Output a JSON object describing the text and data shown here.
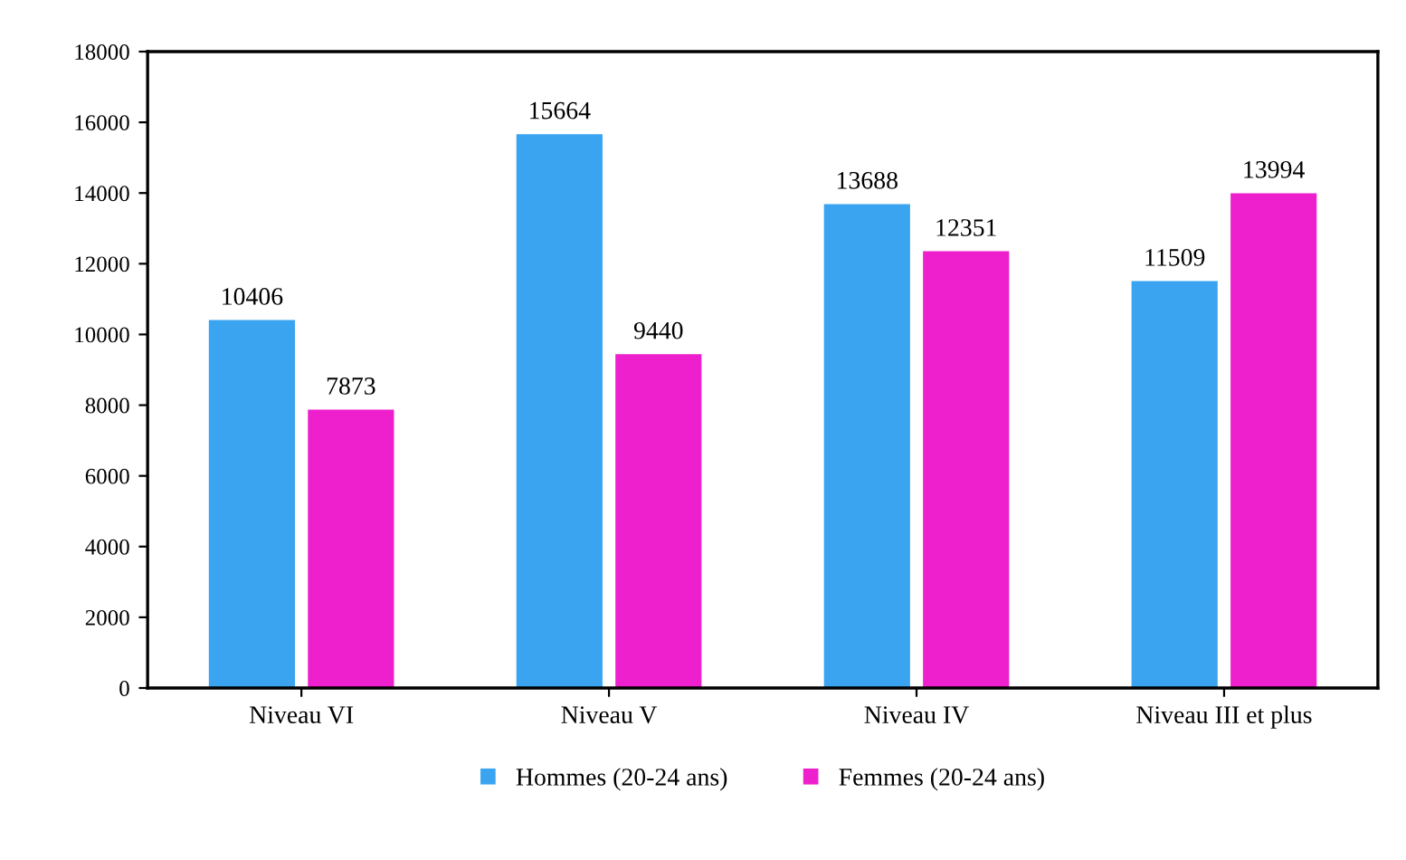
{
  "chart_data": {
    "type": "bar",
    "categories": [
      "Niveau VI",
      "Niveau V",
      "Niveau IV",
      "Niveau III et plus"
    ],
    "series": [
      {
        "name": "Hommes (20-24 ans)",
        "color": "#3aa4f0",
        "values": [
          10406,
          15664,
          13688,
          11509
        ]
      },
      {
        "name": "Femmes (20-24 ans)",
        "color": "#ee1fcc",
        "values": [
          7873,
          9440,
          12351,
          13994
        ]
      }
    ],
    "ylim": [
      0,
      18000
    ],
    "yticks": [
      0,
      2000,
      4000,
      6000,
      8000,
      10000,
      12000,
      14000,
      16000,
      18000
    ],
    "data_labels": true,
    "grid": false,
    "legend": "bottom"
  }
}
